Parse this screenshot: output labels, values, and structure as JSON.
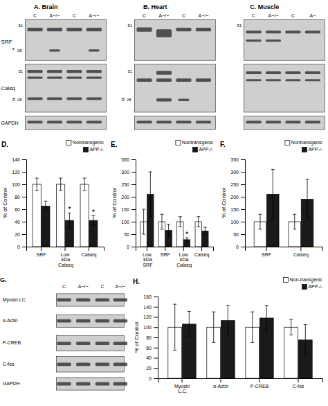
{
  "chart_data": [
    {
      "type": "blot",
      "title": "A. Brain",
      "categories": [
        "C",
        "A−/−",
        "C",
        "A−/−"
      ],
      "annotations": [
        "51",
        "28",
        "*",
        "SRF",
        "51",
        "28",
        "#",
        "Calsq",
        "GAPDH"
      ]
    },
    {
      "type": "blot",
      "title": "B. Heart",
      "categories": [
        "C",
        "A−/−",
        "C",
        "A−/−"
      ],
      "annotations": [
        "51",
        "51",
        "#",
        "28"
      ]
    },
    {
      "type": "blot",
      "title": "C. Muscle",
      "categories": [
        "C",
        "A−/−",
        "C",
        "A−"
      ],
      "annotations": [
        "51"
      ]
    },
    {
      "type": "bar",
      "title": "D.",
      "categories": [
        "SRF",
        "Low\nkDa\nCalseq",
        "Calseq"
      ],
      "ylabel": "% of Control",
      "ylim": [
        0,
        140
      ],
      "yticks": [
        0,
        20,
        40,
        60,
        80,
        100,
        120,
        140
      ],
      "grid": false,
      "legend": "top-right",
      "series": [
        {
          "name": "Nontransgenic",
          "color": "#ffffff",
          "values": [
            100,
            100,
            100
          ],
          "errors": [
            10,
            10,
            10
          ]
        },
        {
          "name": "APP-/-",
          "color": "#1a1a1a",
          "values": [
            65,
            42,
            42
          ],
          "errors": [
            8,
            12,
            8
          ],
          "annotations": [
            null,
            "*",
            "*"
          ]
        }
      ]
    },
    {
      "type": "bar",
      "title": "E.",
      "categories": [
        "Low kDa SRF",
        "SRF",
        "Low kDa Calseq",
        "Calseq"
      ],
      "ylabel": "% of Control",
      "ylim": [
        0,
        350
      ],
      "yticks": [
        0,
        50,
        100,
        150,
        200,
        250,
        300,
        350
      ],
      "grid": false,
      "legend": "top-right",
      "series": [
        {
          "name": "Nontransgenic",
          "color": "#ffffff",
          "values": [
            100,
            100,
            100,
            100
          ],
          "errors": [
            50,
            30,
            20,
            20
          ]
        },
        {
          "name": "APP-/-",
          "color": "#1a1a1a",
          "values": [
            210,
            65,
            28,
            63
          ],
          "errors": [
            90,
            25,
            8,
            15
          ],
          "annotations": [
            null,
            null,
            "*",
            null
          ]
        }
      ]
    },
    {
      "type": "bar",
      "title": "F.",
      "categories": [
        "SRF",
        "Calseq"
      ],
      "ylabel": "% of Control",
      "ylim": [
        0,
        350
      ],
      "yticks": [
        0,
        50,
        100,
        150,
        200,
        250,
        300,
        350
      ],
      "grid": false,
      "legend": "top-right",
      "series": [
        {
          "name": "Nontransgenic",
          "color": "#ffffff",
          "values": [
            100,
            100
          ],
          "errors": [
            30,
            30
          ]
        },
        {
          "name": "APP-/-",
          "color": "#1a1a1a",
          "values": [
            210,
            190
          ],
          "errors": [
            100,
            80
          ]
        }
      ]
    },
    {
      "type": "blot",
      "title": "G.",
      "categories": [
        "C",
        "A−/−",
        "C",
        "A−/−"
      ],
      "annotations": [
        "Myosin LC",
        "α-Actin",
        "P-CREB",
        "C-fos",
        "GAPDH"
      ]
    },
    {
      "type": "bar",
      "title": "H.",
      "categories": [
        "Myosin\nL.C.",
        "α-Actin",
        "P-CREB",
        "C-fos"
      ],
      "ylabel": "% of Control",
      "ylim": [
        0,
        160
      ],
      "yticks": [
        0,
        20,
        40,
        60,
        80,
        100,
        120,
        140,
        160
      ],
      "grid": false,
      "legend": "top-right",
      "series": [
        {
          "name": "Non-transgenic",
          "color": "#ffffff",
          "values": [
            100,
            100,
            100,
            100
          ],
          "errors": [
            45,
            30,
            30,
            15
          ]
        },
        {
          "name": "APP-/-",
          "color": "#1a1a1a",
          "values": [
            106,
            113,
            118,
            75
          ],
          "errors": [
            25,
            30,
            25,
            30
          ]
        }
      ]
    }
  ]
}
